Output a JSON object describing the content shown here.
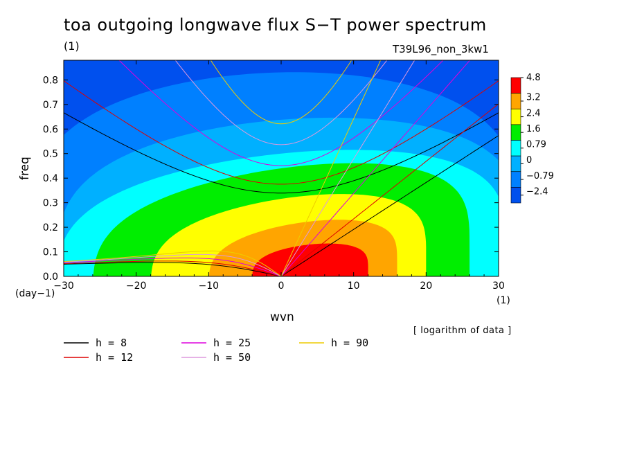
{
  "chart_data": {
    "type": "heatmap",
    "title": "toa outgoing longwave flux S−T power spectrum",
    "title_units": "(1)",
    "run_name": "T39L96_non_3kw1",
    "xlabel": "wvn",
    "xunits": "(1)",
    "ylabel": "freq",
    "yunits": "(day−1)",
    "note": "[ logarithm of data ]",
    "xlim": [
      -30,
      30
    ],
    "ylim": [
      0,
      0.88
    ],
    "xticks": [
      -30,
      -20,
      -10,
      0,
      10,
      20,
      30
    ],
    "xtick_labels": [
      "−30",
      "−20",
      "−10",
      "0",
      "10",
      "20",
      "30"
    ],
    "yticks": [
      0.0,
      0.1,
      0.2,
      0.3,
      0.4,
      0.5,
      0.6,
      0.7,
      0.8
    ],
    "ytick_labels": [
      "0.0",
      "0.1",
      "0.2",
      "0.3",
      "0.4",
      "0.5",
      "0.6",
      "0.7",
      "0.8"
    ],
    "colorbar": {
      "levels": [
        "4.8",
        "3.2",
        "2.4",
        "1.6",
        "0.79",
        "0",
        "−0.79",
        "−2.4"
      ],
      "colors": [
        "#ff0000",
        "#ffa500",
        "#ffff00",
        "#00ee00",
        "#00ffff",
        "#00b0ff",
        "#0080ff",
        "#0050ee"
      ]
    },
    "contour_fill": {
      "background": "#0050ee",
      "bands": [
        {
          "level": "−0.79",
          "color": "#0080ff",
          "cx": -1,
          "cy": 0.08,
          "rx": 34,
          "ry": 0.75,
          "skew": 0.001
        },
        {
          "level": "0",
          "color": "#00b0ff",
          "cx": 1,
          "cy": 0.04,
          "rx": 32,
          "ry": 0.6,
          "skew": 0.002
        },
        {
          "level": "0.79",
          "color": "#00ffff",
          "cx": 0,
          "cy": 0.0,
          "rx": 31,
          "ry": 0.5,
          "skew": 0.003
        },
        {
          "level": "1.6",
          "color": "#00ee00",
          "cx": 0,
          "cy": 0.0,
          "rx": 26,
          "ry": 0.44,
          "skew": 0.004
        },
        {
          "level": "2.4",
          "color": "#ffff00",
          "cx": 1,
          "cy": 0.0,
          "rx": 19,
          "ry": 0.32,
          "skew": 0.004
        },
        {
          "level": "3.2",
          "color": "#ffa500",
          "cx": 3,
          "cy": 0.0,
          "rx": 13,
          "ry": 0.22,
          "skew": 0.004
        },
        {
          "level": "4.8",
          "color": "#ff0000",
          "cx": 4,
          "cy": 0.0,
          "rx": 8,
          "ry": 0.13,
          "skew": 0.003
        }
      ]
    },
    "dispersion_curves": [
      {
        "h": 8,
        "label": "h =  8",
        "color": "#000000"
      },
      {
        "h": 12,
        "label": "h = 12",
        "color": "#dd0000"
      },
      {
        "h": 25,
        "label": "h = 25",
        "color": "#dd00dd"
      },
      {
        "h": 50,
        "label": "h = 50",
        "color": "#dd99dd"
      },
      {
        "h": 90,
        "label": "h = 90",
        "color": "#eecc00"
      }
    ],
    "legend_position": "bottom-left"
  }
}
